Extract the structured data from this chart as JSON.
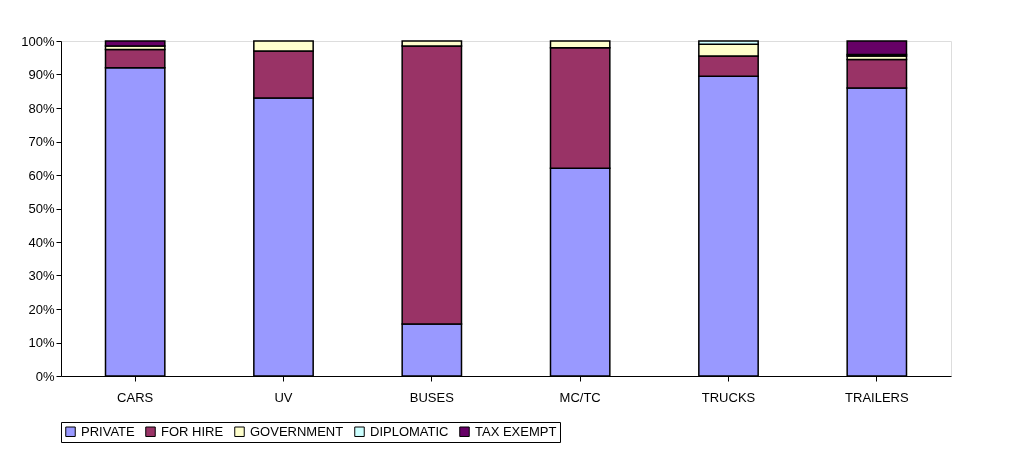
{
  "chart_data": {
    "type": "bar",
    "stacked": true,
    "categories": [
      "CARS",
      "UV",
      "BUSES",
      "MC/TC",
      "TRUCKS",
      "TRAILERS"
    ],
    "series": [
      {
        "name": "PRIVATE",
        "color": "#9999ff",
        "values": [
          92,
          83,
          15.5,
          62,
          89.5,
          86
        ]
      },
      {
        "name": "FOR HIRE",
        "color": "#993366",
        "values": [
          5.5,
          14,
          83,
          36,
          6,
          8.5
        ]
      },
      {
        "name": "GOVERNMENT",
        "color": "#ffffcc",
        "values": [
          1,
          3,
          1.5,
          2,
          3.5,
          1
        ]
      },
      {
        "name": "DIPLOMATIC",
        "color": "#ccffff",
        "values": [
          null,
          null,
          null,
          null,
          1,
          0.5
        ]
      },
      {
        "name": "TAX EXEMPT",
        "color": "#660066",
        "values": [
          1.5,
          null,
          null,
          null,
          null,
          4
        ]
      }
    ],
    "ylim": [
      0,
      100
    ],
    "yticks": [
      {
        "value": 0,
        "label": "0%"
      },
      {
        "value": 10,
        "label": "10%"
      },
      {
        "value": 20,
        "label": "20%"
      },
      {
        "value": 30,
        "label": "30%"
      },
      {
        "value": 40,
        "label": "40%"
      },
      {
        "value": 50,
        "label": "50%"
      },
      {
        "value": 60,
        "label": "60%"
      },
      {
        "value": 70,
        "label": "70%"
      },
      {
        "value": 80,
        "label": "80%"
      },
      {
        "value": 90,
        "label": "90%"
      },
      {
        "value": 100,
        "label": "100%"
      }
    ],
    "grid": false,
    "legend": "bottom"
  }
}
